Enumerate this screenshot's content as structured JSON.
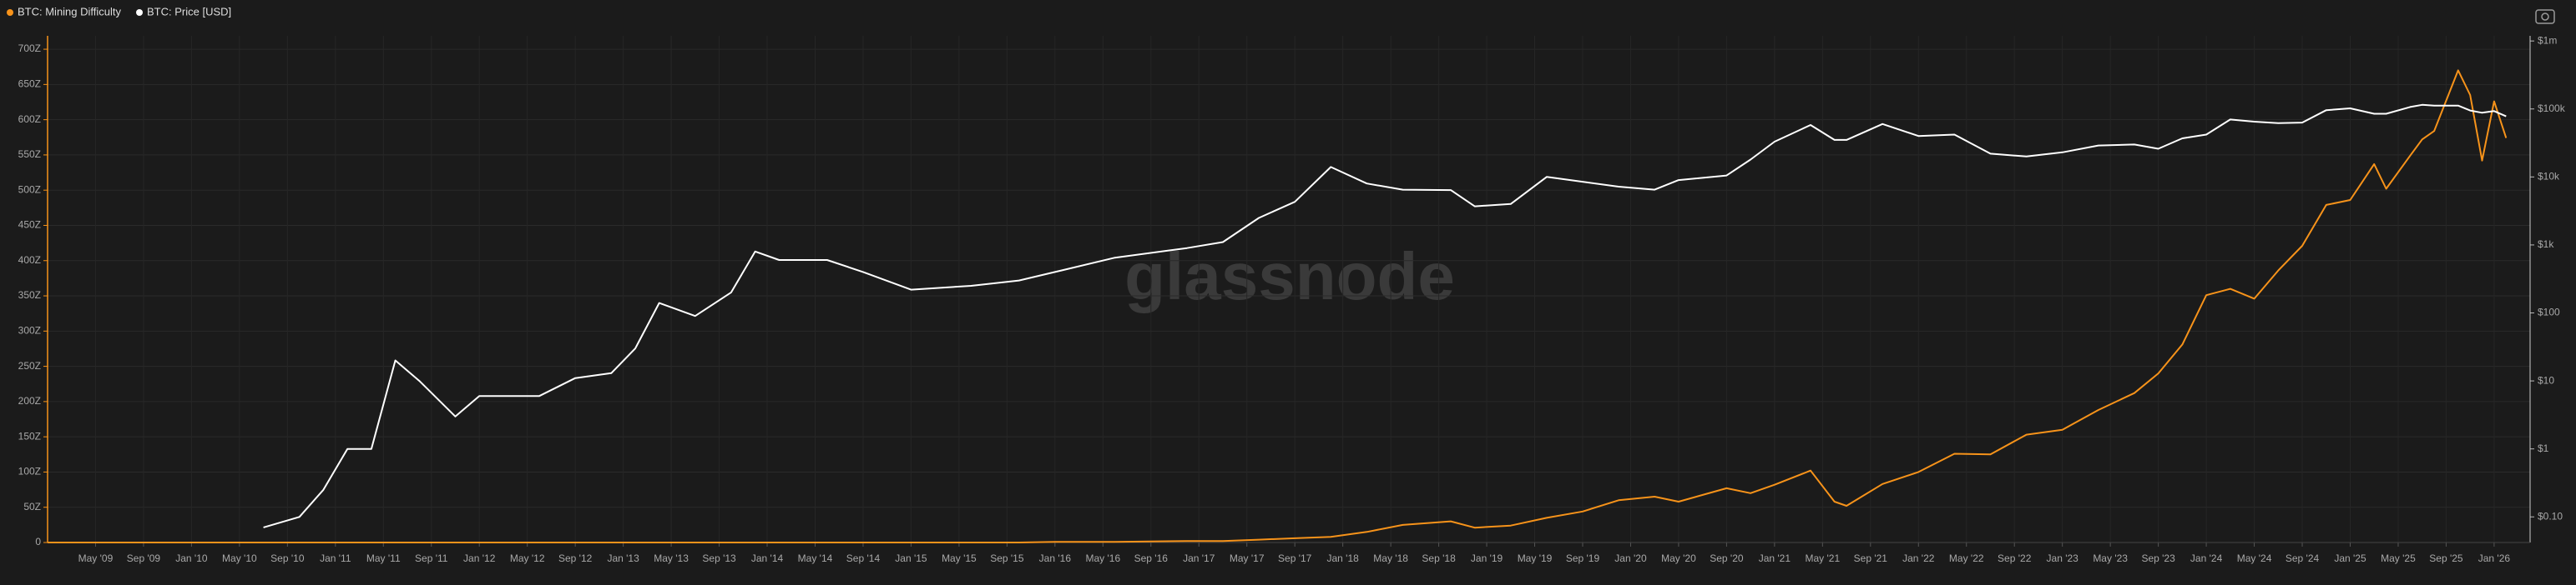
{
  "chart_data": {
    "type": "line",
    "watermark": "glassnode",
    "x": [
      "2009-01",
      "2010-07",
      "2010-10",
      "2010-12",
      "2011-02",
      "2011-04",
      "2011-06",
      "2011-08",
      "2011-11",
      "2012-01",
      "2012-06",
      "2012-09",
      "2012-12",
      "2013-02",
      "2013-04",
      "2013-07",
      "2013-10",
      "2013-12",
      "2014-02",
      "2014-06",
      "2014-09",
      "2015-01",
      "2015-06",
      "2015-10",
      "2016-01",
      "2016-06",
      "2016-12",
      "2017-03",
      "2017-06",
      "2017-09",
      "2017-12",
      "2018-03",
      "2018-06",
      "2018-10",
      "2018-12",
      "2019-03",
      "2019-06",
      "2019-09",
      "2019-12",
      "2020-03",
      "2020-05",
      "2020-09",
      "2020-11",
      "2021-01",
      "2021-04",
      "2021-06",
      "2021-07",
      "2021-10",
      "2022-01",
      "2022-04",
      "2022-07",
      "2022-10",
      "2023-01",
      "2023-04",
      "2023-07",
      "2023-09",
      "2023-11",
      "2024-01",
      "2024-03",
      "2024-05",
      "2024-07",
      "2024-09",
      "2024-11",
      "2025-01",
      "2025-03",
      "2025-04",
      "2025-06",
      "2025-07",
      "2025-08",
      "2025-10",
      "2025-11",
      "2025-12",
      "2026-01",
      "2026-02"
    ],
    "series": [
      {
        "name": "BTC: Mining Difficulty",
        "color": "#f7931a",
        "axis": "y",
        "values": [
          0,
          0,
          0,
          0,
          0,
          0,
          0,
          0,
          0,
          0,
          0,
          0,
          0,
          0,
          0,
          0,
          0,
          0,
          0,
          0,
          0,
          0,
          0,
          0,
          1,
          1,
          2,
          2,
          4,
          6,
          8,
          15,
          25,
          30,
          21,
          24,
          35,
          44,
          60,
          65,
          58,
          77,
          70,
          82,
          102,
          58,
          52,
          83,
          100,
          126,
          125,
          153,
          160,
          188,
          212,
          240,
          281,
          351,
          360,
          346,
          386,
          421,
          479,
          486,
          537,
          502,
          549,
          572,
          584,
          670,
          635,
          542,
          626,
          574
        ]
      },
      {
        "name": "BTC: Price [USD]",
        "color": "#ffffff",
        "axis": "y2",
        "values": [
          null,
          0.07,
          0.1,
          0.25,
          1,
          1,
          20,
          10,
          3,
          6,
          6,
          11,
          13,
          30,
          140,
          90,
          200,
          800,
          600,
          600,
          400,
          220,
          250,
          300,
          400,
          650,
          900,
          1100,
          2500,
          4300,
          14000,
          8000,
          6500,
          6400,
          3700,
          4000,
          10000,
          8500,
          7200,
          6500,
          9000,
          10500,
          18000,
          33000,
          58000,
          35000,
          35000,
          60000,
          40000,
          42000,
          22000,
          20000,
          23000,
          29000,
          30000,
          26000,
          37000,
          42000,
          70000,
          65000,
          62000,
          63000,
          96000,
          102000,
          85000,
          85000,
          107000,
          115000,
          112000,
          112000,
          95000,
          88000,
          93000,
          78000
        ]
      }
    ],
    "xlim": [
      "2009-01",
      "2026-04"
    ],
    "xticks": [
      {
        "value": "2009-05",
        "label": "May '09"
      },
      {
        "value": "2009-09",
        "label": "Sep '09"
      },
      {
        "value": "2010-01",
        "label": "Jan '10"
      },
      {
        "value": "2010-05",
        "label": "May '10"
      },
      {
        "value": "2010-09",
        "label": "Sep '10"
      },
      {
        "value": "2011-01",
        "label": "Jan '11"
      },
      {
        "value": "2011-05",
        "label": "May '11"
      },
      {
        "value": "2011-09",
        "label": "Sep '11"
      },
      {
        "value": "2012-01",
        "label": "Jan '12"
      },
      {
        "value": "2012-05",
        "label": "May '12"
      },
      {
        "value": "2012-09",
        "label": "Sep '12"
      },
      {
        "value": "2013-01",
        "label": "Jan '13"
      },
      {
        "value": "2013-05",
        "label": "May '13"
      },
      {
        "value": "2013-09",
        "label": "Sep '13"
      },
      {
        "value": "2014-01",
        "label": "Jan '14"
      },
      {
        "value": "2014-05",
        "label": "May '14"
      },
      {
        "value": "2014-09",
        "label": "Sep '14"
      },
      {
        "value": "2015-01",
        "label": "Jan '15"
      },
      {
        "value": "2015-05",
        "label": "May '15"
      },
      {
        "value": "2015-09",
        "label": "Sep '15"
      },
      {
        "value": "2016-01",
        "label": "Jan '16"
      },
      {
        "value": "2016-05",
        "label": "May '16"
      },
      {
        "value": "2016-09",
        "label": "Sep '16"
      },
      {
        "value": "2017-01",
        "label": "Jan '17"
      },
      {
        "value": "2017-05",
        "label": "May '17"
      },
      {
        "value": "2017-09",
        "label": "Sep '17"
      },
      {
        "value": "2018-01",
        "label": "Jan '18"
      },
      {
        "value": "2018-05",
        "label": "May '18"
      },
      {
        "value": "2018-09",
        "label": "Sep '18"
      },
      {
        "value": "2019-01",
        "label": "Jan '19"
      },
      {
        "value": "2019-05",
        "label": "May '19"
      },
      {
        "value": "2019-09",
        "label": "Sep '19"
      },
      {
        "value": "2020-01",
        "label": "Jan '20"
      },
      {
        "value": "2020-05",
        "label": "May '20"
      },
      {
        "value": "2020-09",
        "label": "Sep '20"
      },
      {
        "value": "2021-01",
        "label": "Jan '21"
      },
      {
        "value": "2021-05",
        "label": "May '21"
      },
      {
        "value": "2021-09",
        "label": "Sep '21"
      },
      {
        "value": "2022-01",
        "label": "Jan '22"
      },
      {
        "value": "2022-05",
        "label": "May '22"
      },
      {
        "value": "2022-09",
        "label": "Sep '22"
      },
      {
        "value": "2023-01",
        "label": "Jan '23"
      },
      {
        "value": "2023-05",
        "label": "May '23"
      },
      {
        "value": "2023-09",
        "label": "Sep '23"
      },
      {
        "value": "2024-01",
        "label": "Jan '24"
      },
      {
        "value": "2024-05",
        "label": "May '24"
      },
      {
        "value": "2024-09",
        "label": "Sep '24"
      },
      {
        "value": "2025-01",
        "label": "Jan '25"
      },
      {
        "value": "2025-05",
        "label": "May '25"
      },
      {
        "value": "2025-09",
        "label": "Sep '25"
      },
      {
        "value": "2026-01",
        "label": "Jan '26"
      }
    ],
    "ylim": [
      0,
      719
    ],
    "yticks": [
      0,
      {
        "value": 50,
        "label": "50Z"
      },
      {
        "value": 100,
        "label": "100Z"
      },
      {
        "value": 150,
        "label": "150Z"
      },
      {
        "value": 200,
        "label": "200Z"
      },
      {
        "value": 250,
        "label": "250Z"
      },
      {
        "value": 300,
        "label": "300Z"
      },
      {
        "value": 350,
        "label": "350Z"
      },
      {
        "value": 400,
        "label": "400Z"
      },
      {
        "value": 450,
        "label": "450Z"
      },
      {
        "value": 500,
        "label": "500Z"
      },
      {
        "value": 550,
        "label": "550Z"
      },
      {
        "value": 600,
        "label": "600Z"
      },
      {
        "value": 650,
        "label": "650Z"
      },
      {
        "value": 700,
        "label": "700Z"
      }
    ],
    "y2lim": [
      0.042,
      1190000
    ],
    "y2_scale": "log",
    "y2ticks": [
      {
        "value": 0.1,
        "label": "$0.10"
      },
      {
        "value": 1,
        "label": "$1"
      },
      {
        "value": 10,
        "label": "$10"
      },
      {
        "value": 100,
        "label": "$100"
      },
      {
        "value": 1000,
        "label": "$1k"
      },
      {
        "value": 10000,
        "label": "$10k"
      },
      {
        "value": 100000,
        "label": "$100k"
      },
      {
        "value": 1000000,
        "label": "$1m"
      }
    ],
    "grid": true,
    "legend": "top-left"
  }
}
